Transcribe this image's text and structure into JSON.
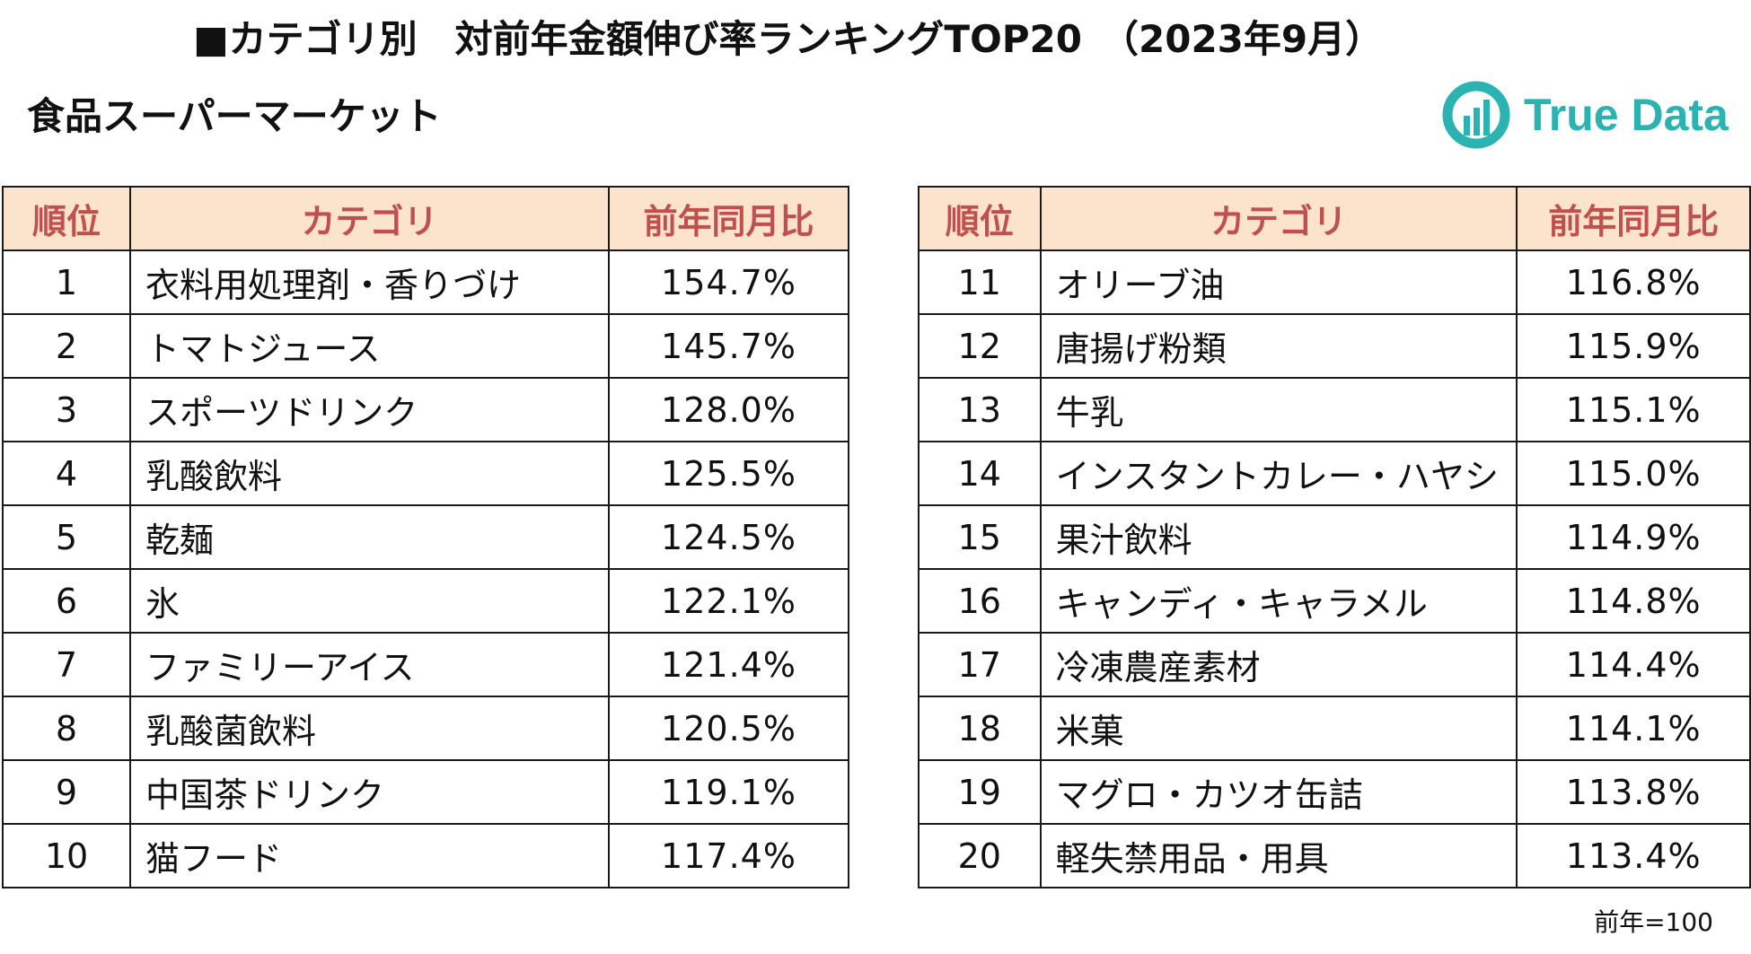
{
  "title": "■カテゴリ別　対前年金額伸び率ランキングTOP20　（2023年9月）",
  "subtitle": "食品スーパーマーケット",
  "logo": {
    "text": "True Data",
    "color": "#2bb3b1"
  },
  "colors": {
    "header_bg": "#fbe3cc",
    "header_text": "#c0504d",
    "border": "#1a1a1a"
  },
  "table": {
    "headers": {
      "rank": "順位",
      "category": "カテゴリ",
      "ratio": "前年同月比"
    },
    "left_rows": [
      {
        "rank": "1",
        "category": "衣料用処理剤・香りづけ",
        "ratio": "154.7%"
      },
      {
        "rank": "2",
        "category": "トマトジュース",
        "ratio": "145.7%"
      },
      {
        "rank": "3",
        "category": "スポーツドリンク",
        "ratio": "128.0%"
      },
      {
        "rank": "4",
        "category": "乳酸飲料",
        "ratio": "125.5%"
      },
      {
        "rank": "5",
        "category": "乾麺",
        "ratio": "124.5%"
      },
      {
        "rank": "6",
        "category": "氷",
        "ratio": "122.1%"
      },
      {
        "rank": "7",
        "category": "ファミリーアイス",
        "ratio": "121.4%"
      },
      {
        "rank": "8",
        "category": "乳酸菌飲料",
        "ratio": "120.5%"
      },
      {
        "rank": "9",
        "category": "中国茶ドリンク",
        "ratio": "119.1%"
      },
      {
        "rank": "10",
        "category": "猫フード",
        "ratio": "117.4%"
      }
    ],
    "right_rows": [
      {
        "rank": "11",
        "category": "オリーブ油",
        "ratio": "116.8%"
      },
      {
        "rank": "12",
        "category": "唐揚げ粉類",
        "ratio": "115.9%"
      },
      {
        "rank": "13",
        "category": "牛乳",
        "ratio": "115.1%"
      },
      {
        "rank": "14",
        "category": "インスタントカレー・ハヤシ",
        "ratio": "115.0%"
      },
      {
        "rank": "15",
        "category": "果汁飲料",
        "ratio": "114.9%"
      },
      {
        "rank": "16",
        "category": "キャンディ・キャラメル",
        "ratio": "114.8%"
      },
      {
        "rank": "17",
        "category": "冷凍農産素材",
        "ratio": "114.4%"
      },
      {
        "rank": "18",
        "category": "米菓",
        "ratio": "114.1%"
      },
      {
        "rank": "19",
        "category": "マグロ・カツオ缶詰",
        "ratio": "113.8%"
      },
      {
        "rank": "20",
        "category": "軽失禁用品・用具",
        "ratio": "113.4%"
      }
    ]
  },
  "footnote": "前年=100"
}
